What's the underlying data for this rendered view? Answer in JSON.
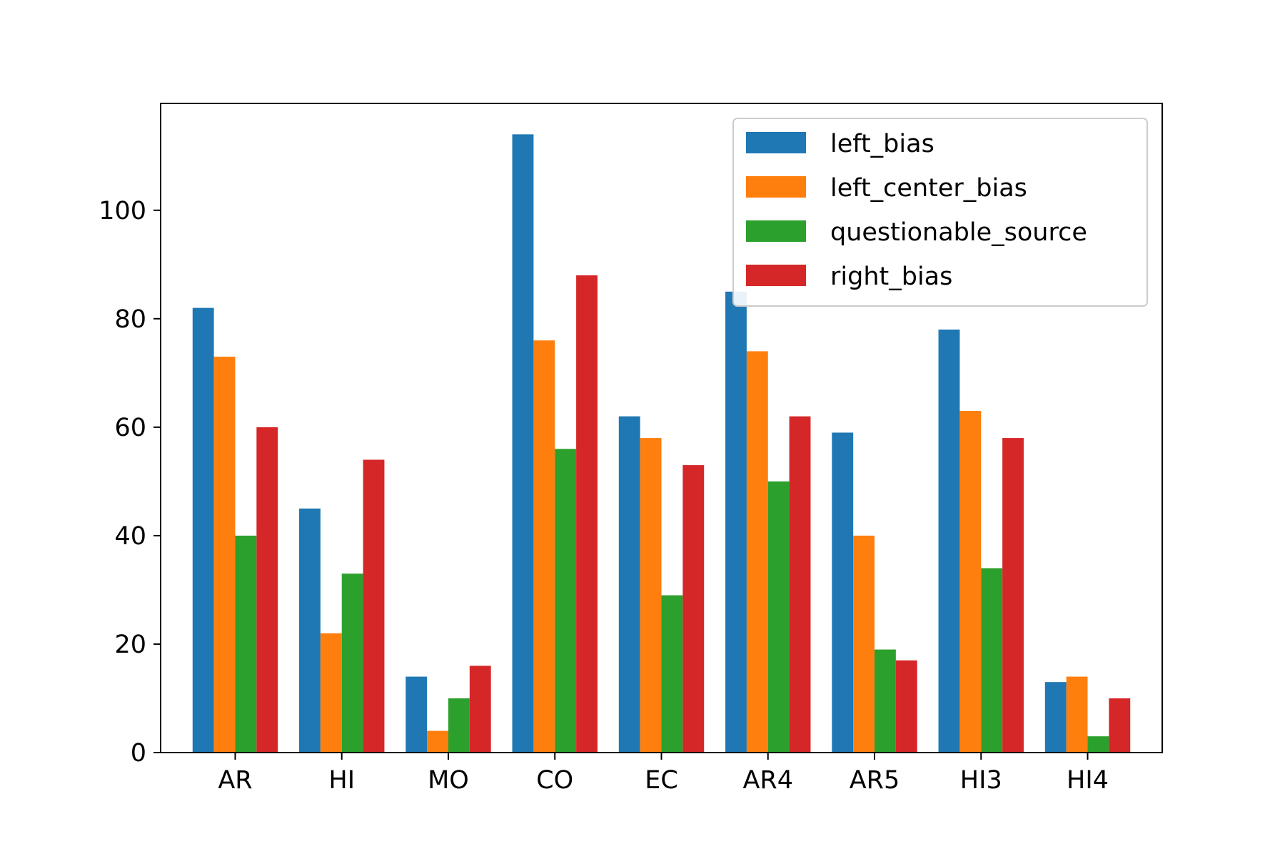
{
  "chart_data": {
    "type": "bar",
    "categories": [
      "AR",
      "HI",
      "MO",
      "CO",
      "EC",
      "AR4",
      "AR5",
      "HI3",
      "HI4"
    ],
    "series": [
      {
        "name": "left_bias",
        "color": "#1f77b4",
        "values": [
          82,
          45,
          14,
          114,
          62,
          85,
          59,
          78,
          13
        ]
      },
      {
        "name": "left_center_bias",
        "color": "#ff7f0e",
        "values": [
          73,
          22,
          4,
          76,
          58,
          74,
          40,
          63,
          14
        ]
      },
      {
        "name": "questionable_source",
        "color": "#2ca02c",
        "values": [
          40,
          33,
          10,
          56,
          29,
          50,
          19,
          34,
          3
        ]
      },
      {
        "name": "right_bias",
        "color": "#d62728",
        "values": [
          60,
          54,
          16,
          88,
          53,
          62,
          17,
          58,
          10
        ]
      }
    ],
    "yticks": [
      0,
      20,
      40,
      60,
      80,
      100
    ],
    "ylim": [
      0,
      119.7
    ],
    "xlabel": "",
    "ylabel": "",
    "title": "",
    "legend_position": "top-right",
    "grid": false
  }
}
